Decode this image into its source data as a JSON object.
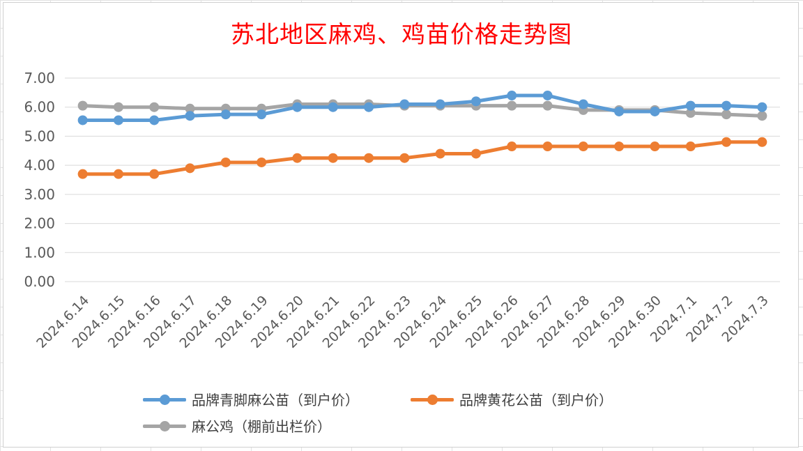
{
  "chart_data": {
    "type": "line",
    "title": "苏北地区麻鸡、鸡苗价格走势图",
    "categories": [
      "2024.6.14",
      "2024.6.15",
      "2024.6.16",
      "2024.6.17",
      "2024.6.18",
      "2024.6.19",
      "2024.6.20",
      "2024.6.21",
      "2024.6.22",
      "2024.6.23",
      "2024.6.24",
      "2024.6.25",
      "2024.6.26",
      "2024.6.27",
      "2024.6.28",
      "2024.6.29",
      "2024.6.30",
      "2024.7.1",
      "2024.7.2",
      "2024.7.3"
    ],
    "ylim": [
      0,
      7
    ],
    "yticks": [
      "0.00",
      "1.00",
      "2.00",
      "3.00",
      "4.00",
      "5.00",
      "6.00",
      "7.00"
    ],
    "grid": true,
    "legend_position": "bottom",
    "series": [
      {
        "name": "品牌青脚麻公苗（到户价）",
        "color": "#5b9bd5",
        "values": [
          5.55,
          5.55,
          5.55,
          5.7,
          5.75,
          5.75,
          6.0,
          6.0,
          6.0,
          6.1,
          6.1,
          6.2,
          6.4,
          6.4,
          6.1,
          5.85,
          5.85,
          6.05,
          6.05,
          6.0
        ]
      },
      {
        "name": "品牌黄花公苗（到户价）",
        "color": "#ed7d31",
        "values": [
          3.7,
          3.7,
          3.7,
          3.9,
          4.1,
          4.1,
          4.25,
          4.25,
          4.25,
          4.25,
          4.4,
          4.4,
          4.65,
          4.65,
          4.65,
          4.65,
          4.65,
          4.65,
          4.8,
          4.8
        ]
      },
      {
        "name": "麻公鸡（棚前出栏价）",
        "color": "#a5a5a5",
        "values": [
          6.05,
          6.0,
          6.0,
          5.95,
          5.95,
          5.95,
          6.1,
          6.1,
          6.1,
          6.05,
          6.05,
          6.05,
          6.05,
          6.05,
          5.9,
          5.9,
          5.9,
          5.8,
          5.75,
          5.7
        ]
      }
    ]
  }
}
